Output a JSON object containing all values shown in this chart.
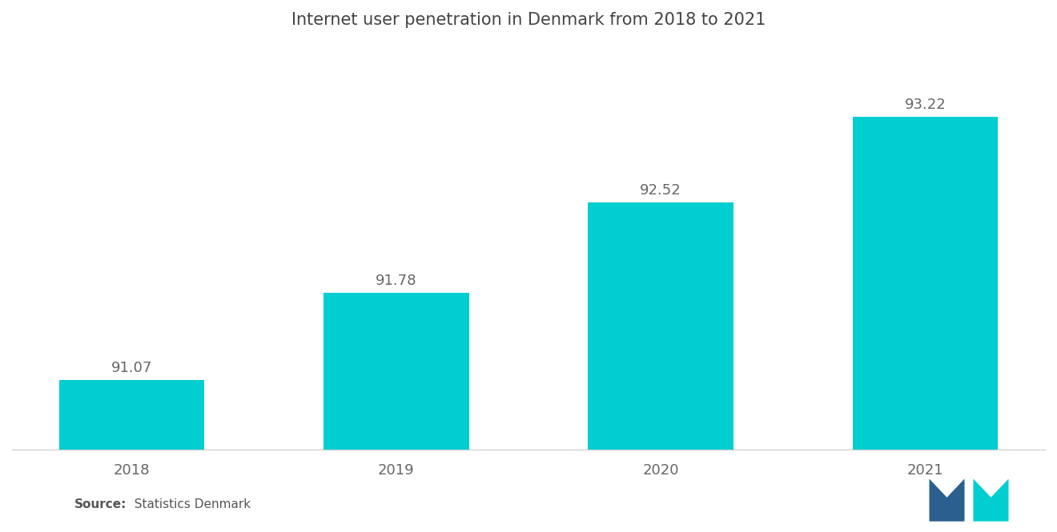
{
  "title": "Internet user penetration in Denmark from 2018 to 2021",
  "categories": [
    "2018",
    "2019",
    "2020",
    "2021"
  ],
  "values": [
    91.07,
    91.78,
    92.52,
    93.22
  ],
  "bar_color": "#00CED1",
  "background_color": "#ffffff",
  "value_labels": [
    "91.07",
    "91.78",
    "92.52",
    "93.22"
  ],
  "ylim_min": 90.5,
  "ylim_max": 93.7,
  "source_bold": "Source:",
  "source_normal": "  Statistics Denmark",
  "title_fontsize": 15,
  "label_fontsize": 13,
  "tick_fontsize": 13,
  "source_fontsize": 11,
  "bar_width": 0.55,
  "logo_color_blue": "#2a5f8f",
  "logo_color_teal": "#00CED1"
}
